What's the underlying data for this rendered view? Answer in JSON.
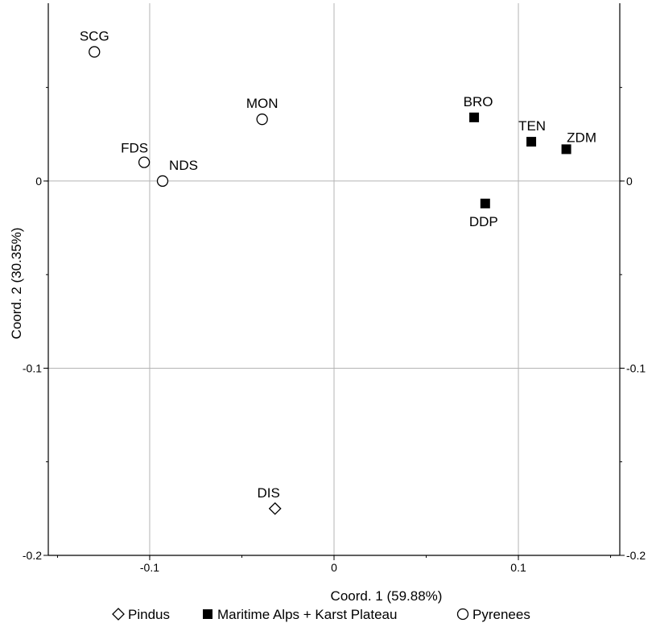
{
  "chart_data": {
    "type": "scatter",
    "title": "",
    "xlabel": "Coord. 1 (59.88%)",
    "ylabel": "Coord. 2 (30.35%)",
    "xlim": [
      -0.155,
      0.155
    ],
    "ylim": [
      -0.2,
      0.095
    ],
    "x_ticks": [
      {
        "value": -0.1,
        "label": "-0.1"
      },
      {
        "value": 0,
        "label": "0"
      },
      {
        "value": 0.1,
        "label": "0.1"
      }
    ],
    "y_ticks": [
      {
        "value": 0,
        "label": "0"
      },
      {
        "value": -0.1,
        "label": "-0.1"
      },
      {
        "value": -0.2,
        "label": "-0.2"
      }
    ],
    "y_ticks_right": [
      {
        "value": 0,
        "label": "0"
      },
      {
        "value": -0.1,
        "label": "-0.1"
      },
      {
        "value": -0.2,
        "label": "-0.2"
      }
    ],
    "grid": true,
    "legend_position": "bottom",
    "series": [
      {
        "name": "Pindus",
        "marker": "diamond-open",
        "points": [
          {
            "label": "DIS",
            "x": -0.032,
            "y": -0.175
          }
        ]
      },
      {
        "name": "Maritime Alps + Karst Plateau",
        "marker": "square-filled",
        "points": [
          {
            "label": "BRO",
            "x": 0.076,
            "y": 0.034
          },
          {
            "label": "TEN",
            "x": 0.107,
            "y": 0.021
          },
          {
            "label": "ZDM",
            "x": 0.126,
            "y": 0.017
          },
          {
            "label": "DDP",
            "x": 0.082,
            "y": -0.012
          }
        ]
      },
      {
        "name": "Pyrenees",
        "marker": "circle-open",
        "points": [
          {
            "label": "SCG",
            "x": -0.13,
            "y": 0.069
          },
          {
            "label": "MON",
            "x": -0.039,
            "y": 0.033
          },
          {
            "label": "FDS",
            "x": -0.103,
            "y": 0.01
          },
          {
            "label": "NDS",
            "x": -0.093,
            "y": 0.0
          }
        ]
      }
    ]
  },
  "colors": {
    "grid": "#b4b4b4",
    "frame": "#000000",
    "marker": "#000000",
    "background": "#ffffff"
  }
}
